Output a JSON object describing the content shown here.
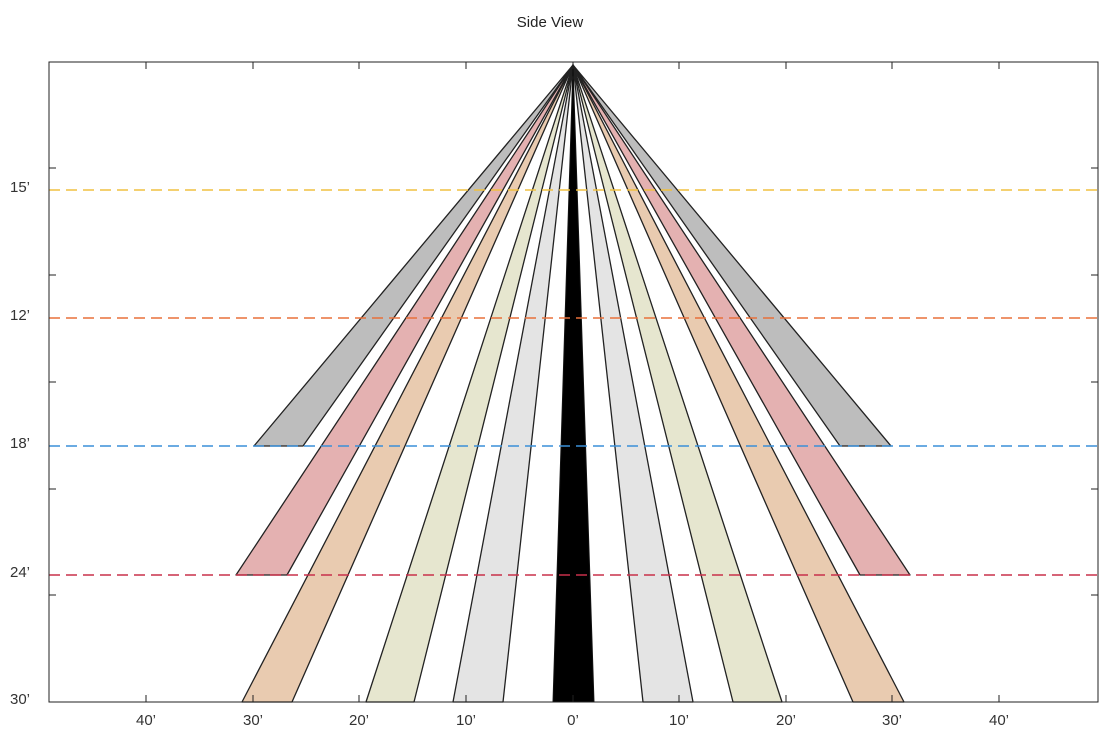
{
  "title": "Side View",
  "x_tick_labels": [
    "40’",
    "30’",
    "20’",
    "10’",
    "0’",
    "10’",
    "20’",
    "30’",
    "40’"
  ],
  "height_labels": [
    "15’",
    "12’",
    "18’",
    "24’",
    "30’"
  ],
  "dashed_lines": [
    {
      "label": "15’",
      "color": "#f0c040"
    },
    {
      "label": "12’",
      "color": "#e8703a"
    },
    {
      "label": "18’",
      "color": "#3a8fd8"
    },
    {
      "label": "24’",
      "color": "#c8304a"
    }
  ],
  "beams": [
    {
      "name": "center",
      "fill": "#000000"
    },
    {
      "name": "light-gray",
      "fill": "#e4e4e4"
    },
    {
      "name": "olive",
      "fill": "#e6e6cf"
    },
    {
      "name": "tan",
      "fill": "#e9cbb0"
    },
    {
      "name": "pink",
      "fill": "#e4b1b1"
    },
    {
      "name": "gray",
      "fill": "#bdbdbd"
    }
  ]
}
